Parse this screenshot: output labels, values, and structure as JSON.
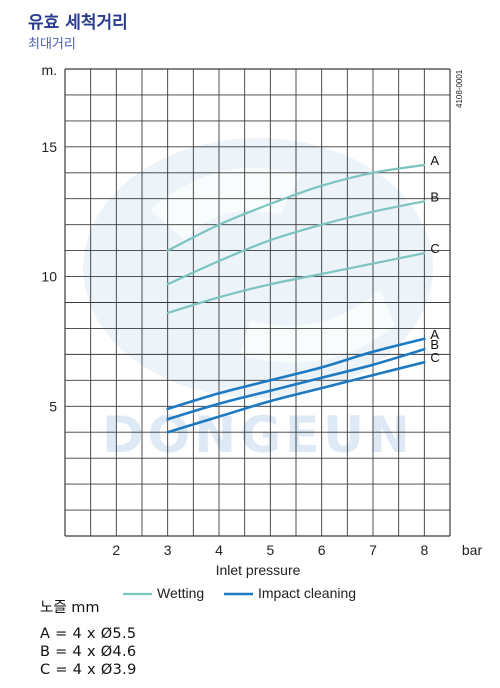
{
  "header": {
    "title": "유효 세척거리",
    "subtitle": "최대거리"
  },
  "code": "4108-0001",
  "watermark": "DONGEUN",
  "colors": {
    "wetting": "#7cc4c0",
    "impact": "#1c79c2",
    "grid": "#3a3a3a",
    "watermark": "#dde9f4"
  },
  "chart_data": {
    "type": "line",
    "xlabel": "Inlet pressure",
    "xunit": "bar",
    "yunit": "m.",
    "xlim": [
      1,
      8.5
    ],
    "ylim": [
      0,
      18
    ],
    "xticks": [
      2,
      3,
      4,
      5,
      6,
      7,
      8
    ],
    "yticks": [
      5,
      10,
      15
    ],
    "grid": true,
    "legend": {
      "position": "bottom",
      "entries": [
        "Wetting",
        "Impact cleaning"
      ]
    },
    "series": [
      {
        "name": "A",
        "group": "Wetting",
        "x": [
          3,
          4,
          5,
          6,
          7,
          8
        ],
        "y": [
          11.0,
          12.0,
          12.8,
          13.5,
          14.0,
          14.3
        ]
      },
      {
        "name": "B",
        "group": "Wetting",
        "x": [
          3,
          4,
          5,
          6,
          7,
          8
        ],
        "y": [
          9.7,
          10.6,
          11.4,
          12.0,
          12.5,
          12.9
        ]
      },
      {
        "name": "C",
        "group": "Wetting",
        "x": [
          3,
          4,
          5,
          6,
          7,
          8
        ],
        "y": [
          8.6,
          9.2,
          9.7,
          10.1,
          10.5,
          10.9
        ]
      },
      {
        "name": "A",
        "group": "Impact cleaning",
        "x": [
          3,
          4,
          5,
          6,
          7,
          8
        ],
        "y": [
          4.9,
          5.5,
          6.0,
          6.5,
          7.1,
          7.6
        ]
      },
      {
        "name": "B",
        "group": "Impact cleaning",
        "x": [
          3,
          4,
          5,
          6,
          7,
          8
        ],
        "y": [
          4.5,
          5.1,
          5.6,
          6.1,
          6.6,
          7.2
        ]
      },
      {
        "name": "C",
        "group": "Impact cleaning",
        "x": [
          3,
          4,
          5,
          6,
          7,
          8
        ],
        "y": [
          4.0,
          4.6,
          5.2,
          5.7,
          6.2,
          6.7
        ]
      }
    ]
  },
  "nozzles": {
    "header": "노즐 mm",
    "rows": [
      "A = 4 x Ø5.5",
      "B = 4 x Ø4.6",
      "C = 4 x Ø3.9"
    ]
  }
}
